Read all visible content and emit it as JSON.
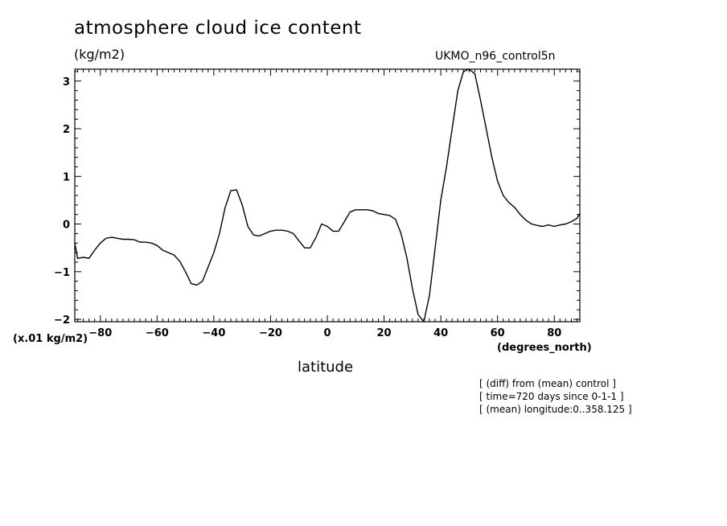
{
  "header": {
    "title": "atmosphere cloud ice content",
    "units": "(kg/m2)",
    "model": "UKMO_n96_control5n"
  },
  "axes": {
    "y_scale_label": "(x.01 kg/m2)",
    "x_units_label": "(degrees_north)",
    "x_label": "latitude"
  },
  "notes": [
    "[ (diff) from (mean) control ]",
    "[ time=720 days since 0-1-1 ]",
    "[ (mean) longitude:0..358.125 ]"
  ],
  "chart_data": {
    "type": "line",
    "title": "atmosphere cloud ice content",
    "xlabel": "latitude",
    "ylabel": "(x.01 kg/m2)",
    "xlim": [
      -89,
      89
    ],
    "ylim": [
      -2.05,
      3.25
    ],
    "xticks": [
      -80,
      -60,
      -40,
      -20,
      0,
      20,
      40,
      60,
      80
    ],
    "xtick_labels": [
      "-80",
      "-60",
      "-40",
      "-20",
      "0",
      "20",
      "40",
      "60",
      "80"
    ],
    "yticks": [
      -2,
      -1,
      0,
      1,
      2,
      3
    ],
    "ytick_labels": [
      "-2",
      "-1",
      "0",
      "1",
      "2",
      "3"
    ],
    "series": [
      {
        "x": [
          -89,
          -88,
          -86,
          -84,
          -82,
          -80,
          -78,
          -76,
          -74,
          -72,
          -70,
          -68,
          -66,
          -64,
          -62,
          -60,
          -58,
          -56,
          -54,
          -52,
          -50,
          -48,
          -46,
          -44,
          -42,
          -40,
          -38,
          -36,
          -34,
          -32,
          -30,
          -28,
          -26,
          -24,
          -22,
          -20,
          -18,
          -16,
          -14,
          -12,
          -10,
          -8,
          -6,
          -4,
          -2,
          0,
          2,
          4,
          6,
          8,
          10,
          12,
          14,
          16,
          18,
          20,
          22,
          24,
          26,
          28,
          30,
          32,
          34,
          36,
          38,
          40,
          42,
          44,
          46,
          48,
          50,
          52,
          54,
          56,
          58,
          60,
          62,
          64,
          66,
          68,
          70,
          72,
          74,
          76,
          78,
          80,
          82,
          84,
          86,
          88,
          89
        ],
        "y": [
          -0.4,
          -0.72,
          -0.7,
          -0.72,
          -0.55,
          -0.4,
          -0.3,
          -0.28,
          -0.3,
          -0.32,
          -0.32,
          -0.33,
          -0.38,
          -0.38,
          -0.4,
          -0.45,
          -0.55,
          -0.6,
          -0.65,
          -0.78,
          -1.0,
          -1.25,
          -1.28,
          -1.2,
          -0.9,
          -0.6,
          -0.2,
          0.35,
          0.7,
          0.72,
          0.4,
          -0.05,
          -0.23,
          -0.25,
          -0.2,
          -0.15,
          -0.13,
          -0.13,
          -0.15,
          -0.2,
          -0.35,
          -0.5,
          -0.5,
          -0.28,
          0.0,
          -0.05,
          -0.15,
          -0.15,
          0.05,
          0.25,
          0.3,
          0.3,
          0.3,
          0.28,
          0.22,
          0.2,
          0.18,
          0.1,
          -0.2,
          -0.7,
          -1.35,
          -1.9,
          -2.05,
          -1.5,
          -0.5,
          0.5,
          1.2,
          2.0,
          2.8,
          3.2,
          3.25,
          3.15,
          2.6,
          2.0,
          1.4,
          0.9,
          0.6,
          0.45,
          0.35,
          0.2,
          0.08,
          0.0,
          -0.03,
          -0.05,
          -0.02,
          -0.05,
          -0.02,
          0.0,
          0.05,
          0.12,
          0.22
        ]
      }
    ],
    "grid": false
  }
}
